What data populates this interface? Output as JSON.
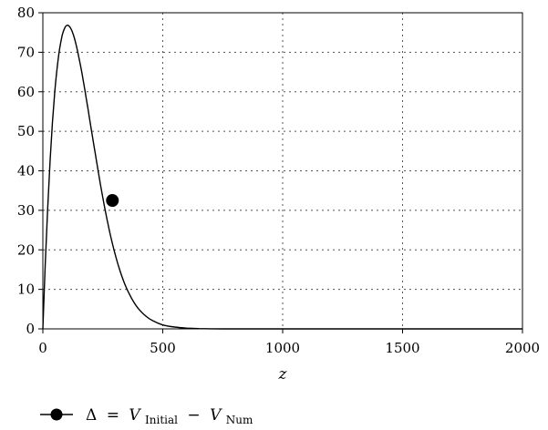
{
  "chart_data": {
    "type": "line",
    "title": "",
    "xlabel": "z",
    "ylabel": "",
    "xlim": [
      0,
      2000
    ],
    "ylim": [
      0,
      80
    ],
    "x_ticks": [
      0,
      500,
      1000,
      1500,
      2000
    ],
    "y_ticks": [
      0,
      10,
      20,
      30,
      40,
      50,
      60,
      70,
      80
    ],
    "grid": "dotted",
    "legend_position": "bottom-left",
    "series": [
      {
        "name": "Δ = V_Initial − V_Num",
        "legend": {
          "delta": "Δ",
          "eq": "=",
          "v1": "V",
          "sub1": "Initial",
          "minus": "−",
          "v2": "V",
          "sub2": "Num"
        },
        "color": "#000000",
        "x": [
          0,
          10,
          20,
          30,
          40,
          50,
          60,
          70,
          80,
          90,
          100,
          110,
          120,
          130,
          140,
          150,
          160,
          170,
          180,
          190,
          200,
          220,
          240,
          260,
          280,
          300,
          320,
          340,
          360,
          380,
          400,
          430,
          460,
          500,
          550,
          600,
          650,
          700,
          750,
          800,
          900,
          1000,
          1200,
          1500,
          2000
        ],
        "values": [
          0,
          16.3,
          30.5,
          42.4,
          52.2,
          60.1,
          66.3,
          70.9,
          74.1,
          76.0,
          76.8,
          76.6,
          75.6,
          73.9,
          71.6,
          68.8,
          65.7,
          62.3,
          58.7,
          55.0,
          51.2,
          43.8,
          36.6,
          30.0,
          24.2,
          19.2,
          15.0,
          11.6,
          8.9,
          6.7,
          5.0,
          3.2,
          2.0,
          1.0,
          0.45,
          0.19,
          0.08,
          0.03,
          0.01,
          0,
          0,
          0,
          0,
          0,
          0
        ],
        "marker": {
          "x": 290,
          "y": 32.5
        }
      }
    ]
  }
}
